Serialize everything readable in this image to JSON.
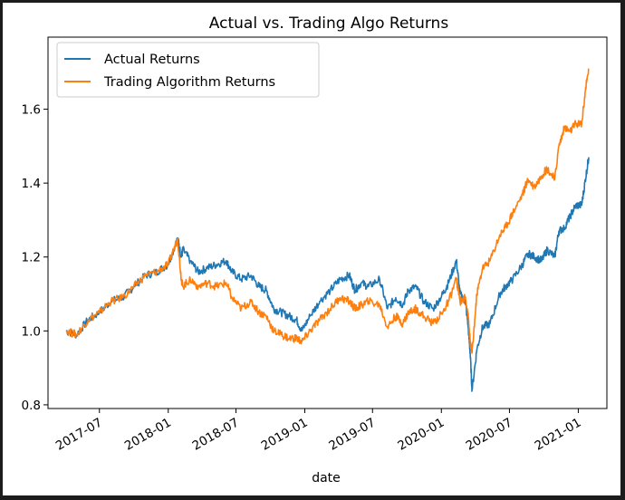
{
  "chart_data": {
    "type": "line",
    "title": "Actual vs. Trading Algo Returns",
    "xlabel": "date",
    "ylabel": "",
    "x_range": [
      "2017-04-03",
      "2021-01-29"
    ],
    "ylim": [
      0.79,
      1.795
    ],
    "yticks": [
      0.8,
      1.0,
      1.2,
      1.4,
      1.6
    ],
    "ytick_labels": [
      "0.8",
      "1.0",
      "1.2",
      "1.4",
      "1.6"
    ],
    "xticks": [
      "2017-07-01",
      "2018-01-01",
      "2018-07-01",
      "2019-01-01",
      "2019-07-01",
      "2020-01-01",
      "2020-07-01",
      "2021-01-01"
    ],
    "xtick_labels": [
      "2017-07",
      "2018-01",
      "2018-07",
      "2019-01",
      "2019-07",
      "2020-01",
      "2020-07",
      "2021-01"
    ],
    "grid": false,
    "legend_position": "top-left",
    "series": [
      {
        "name": "Actual Returns",
        "color": "#1f77b4",
        "x": [
          "2017-04-03",
          "2017-05-01",
          "2017-06-01",
          "2017-07-01",
          "2017-08-01",
          "2017-09-01",
          "2017-10-01",
          "2017-11-01",
          "2017-12-01",
          "2018-01-01",
          "2018-01-26",
          "2018-02-05",
          "2018-02-09",
          "2018-03-01",
          "2018-03-22",
          "2018-04-15",
          "2018-05-10",
          "2018-06-05",
          "2018-06-20",
          "2018-07-15",
          "2018-08-10",
          "2018-09-01",
          "2018-09-20",
          "2018-10-10",
          "2018-10-30",
          "2018-11-20",
          "2018-12-10",
          "2018-12-24",
          "2019-01-15",
          "2019-02-10",
          "2019-03-10",
          "2019-04-05",
          "2019-04-30",
          "2019-05-15",
          "2019-06-01",
          "2019-06-20",
          "2019-07-20",
          "2019-08-10",
          "2019-09-01",
          "2019-09-20",
          "2019-10-05",
          "2019-10-25",
          "2019-11-15",
          "2019-12-10",
          "2020-01-05",
          "2020-01-20",
          "2020-02-10",
          "2020-02-20",
          "2020-03-05",
          "2020-03-12",
          "2020-03-18",
          "2020-03-23",
          "2020-04-05",
          "2020-04-20",
          "2020-05-10",
          "2020-06-05",
          "2020-06-20",
          "2020-07-10",
          "2020-08-05",
          "2020-08-20",
          "2020-09-05",
          "2020-09-25",
          "2020-10-10",
          "2020-10-30",
          "2020-11-10",
          "2020-11-25",
          "2020-12-10",
          "2020-12-25",
          "2021-01-10",
          "2021-01-20",
          "2021-01-29"
        ],
        "y": [
          1.0,
          0.99,
          1.03,
          1.05,
          1.08,
          1.09,
          1.12,
          1.15,
          1.16,
          1.18,
          1.25,
          1.2,
          1.22,
          1.19,
          1.16,
          1.17,
          1.18,
          1.19,
          1.16,
          1.14,
          1.15,
          1.12,
          1.11,
          1.06,
          1.05,
          1.04,
          1.03,
          1.0,
          1.04,
          1.08,
          1.11,
          1.14,
          1.15,
          1.11,
          1.13,
          1.12,
          1.14,
          1.06,
          1.09,
          1.07,
          1.11,
          1.12,
          1.08,
          1.06,
          1.1,
          1.13,
          1.19,
          1.1,
          1.08,
          1.02,
          0.94,
          0.84,
          0.95,
          1.01,
          1.02,
          1.1,
          1.12,
          1.14,
          1.18,
          1.21,
          1.2,
          1.19,
          1.22,
          1.2,
          1.27,
          1.28,
          1.31,
          1.34,
          1.34,
          1.41,
          1.47
        ]
      },
      {
        "name": "Trading Algorithm Returns",
        "color": "#ff7f0e",
        "x": [
          "2017-04-03",
          "2017-05-01",
          "2017-06-01",
          "2017-07-01",
          "2017-08-01",
          "2017-09-01",
          "2017-10-01",
          "2017-11-01",
          "2017-12-01",
          "2018-01-01",
          "2018-01-26",
          "2018-02-05",
          "2018-02-09",
          "2018-03-01",
          "2018-03-22",
          "2018-04-15",
          "2018-05-10",
          "2018-06-05",
          "2018-06-20",
          "2018-07-15",
          "2018-08-10",
          "2018-09-01",
          "2018-09-20",
          "2018-10-10",
          "2018-10-30",
          "2018-11-20",
          "2018-12-10",
          "2018-12-24",
          "2019-01-15",
          "2019-02-10",
          "2019-03-10",
          "2019-04-05",
          "2019-04-30",
          "2019-05-15",
          "2019-06-01",
          "2019-06-20",
          "2019-07-20",
          "2019-08-10",
          "2019-09-01",
          "2019-09-20",
          "2019-10-05",
          "2019-10-25",
          "2019-11-15",
          "2019-12-10",
          "2020-01-05",
          "2020-01-20",
          "2020-02-10",
          "2020-02-20",
          "2020-03-05",
          "2020-03-12",
          "2020-03-18",
          "2020-03-23",
          "2020-04-05",
          "2020-04-20",
          "2020-05-10",
          "2020-06-05",
          "2020-06-20",
          "2020-07-10",
          "2020-08-05",
          "2020-08-20",
          "2020-09-05",
          "2020-09-25",
          "2020-10-10",
          "2020-10-30",
          "2020-11-10",
          "2020-11-25",
          "2020-12-10",
          "2020-12-25",
          "2021-01-10",
          "2021-01-20",
          "2021-01-29"
        ],
        "y": [
          1.0,
          0.99,
          1.03,
          1.05,
          1.08,
          1.09,
          1.12,
          1.15,
          1.16,
          1.18,
          1.25,
          1.14,
          1.12,
          1.14,
          1.12,
          1.13,
          1.12,
          1.13,
          1.09,
          1.06,
          1.08,
          1.05,
          1.04,
          1.0,
          0.99,
          0.98,
          0.98,
          0.97,
          1.0,
          1.03,
          1.06,
          1.09,
          1.08,
          1.06,
          1.07,
          1.08,
          1.07,
          1.01,
          1.04,
          1.02,
          1.05,
          1.06,
          1.04,
          1.02,
          1.05,
          1.08,
          1.14,
          1.08,
          1.09,
          1.05,
          0.97,
          0.94,
          1.1,
          1.17,
          1.19,
          1.26,
          1.28,
          1.32,
          1.37,
          1.41,
          1.39,
          1.42,
          1.44,
          1.41,
          1.5,
          1.55,
          1.54,
          1.56,
          1.56,
          1.65,
          1.71
        ]
      }
    ]
  }
}
